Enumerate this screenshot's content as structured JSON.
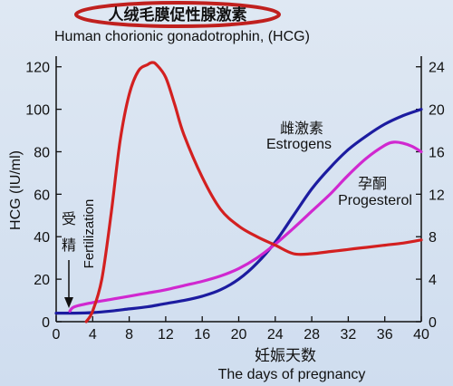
{
  "chart_data": {
    "type": "line",
    "title_cn": "人绒毛膜促性腺激素",
    "title_en": "Human chorionic gonadotrophin, (HCG)",
    "ylabel": "HCG (IU/ml)",
    "xlabel_cn": "妊娠天数",
    "xlabel_en": "The days of pregnancy",
    "x_ticks": [
      0,
      4,
      8,
      12,
      16,
      20,
      24,
      28,
      32,
      36,
      40
    ],
    "x_tick_labels": [
      "0",
      "4",
      "8",
      "12",
      "16",
      "20",
      "24",
      "28",
      "32",
      "36",
      "40"
    ],
    "y_left_ticks": [
      0,
      20,
      40,
      60,
      80,
      100,
      120
    ],
    "y_left_tick_labels": [
      "0",
      "20",
      "40",
      "60",
      "80",
      "100",
      "120"
    ],
    "y_right_ticks": [
      0,
      4,
      8,
      12,
      16,
      20,
      24
    ],
    "y_right_tick_labels": [
      "0",
      "4",
      "8",
      "12",
      "16",
      "20",
      "24"
    ],
    "xlim": [
      0,
      40
    ],
    "ylim_left": [
      0,
      125
    ],
    "ylim_right": [
      0,
      25
    ],
    "fertilization_label_cn": [
      "受",
      "精"
    ],
    "fertilization_label_en": "Fertilization",
    "series": [
      {
        "name": "HCG",
        "color": "#d32020",
        "axis": "left",
        "x": [
          3.3,
          4,
          5,
          6,
          7,
          8,
          9,
          10,
          10.5,
          11,
          12,
          13,
          14,
          16,
          18,
          20,
          22,
          24,
          26,
          28,
          30,
          32,
          34,
          36,
          38,
          40
        ],
        "y": [
          0,
          5,
          20,
          50,
          85,
          107,
          118,
          121,
          122,
          121,
          115,
          102,
          88,
          68,
          53,
          45,
          40,
          36,
          32,
          32,
          33,
          34,
          35,
          36,
          37,
          38.5
        ]
      },
      {
        "name": "雌激素 Estrogens",
        "label_cn": "雌激素",
        "label_en": "Estrogens",
        "color": "#1c1ca0",
        "axis": "right",
        "x": [
          0,
          2,
          4,
          6,
          8,
          10,
          12,
          14,
          16,
          18,
          20,
          22,
          24,
          26,
          28,
          30,
          32,
          34,
          36,
          38,
          40
        ],
        "y": [
          0.8,
          0.8,
          0.85,
          1.0,
          1.2,
          1.4,
          1.7,
          2.0,
          2.4,
          3.0,
          4.0,
          5.5,
          7.5,
          10.0,
          12.5,
          14.5,
          16.2,
          17.5,
          18.6,
          19.4,
          20.0
        ]
      },
      {
        "name": "孕酮 Progesterol",
        "label_cn": "孕酮",
        "label_en": "Progesterol",
        "color": "#d028d0",
        "axis": "right",
        "x": [
          1.5,
          2,
          4,
          6,
          8,
          10,
          12,
          14,
          16,
          18,
          20,
          22,
          24,
          26,
          28,
          30,
          32,
          34,
          36,
          37,
          38,
          39,
          40
        ],
        "y": [
          1.0,
          1.4,
          1.8,
          2.1,
          2.4,
          2.7,
          3.0,
          3.4,
          3.8,
          4.3,
          5.0,
          6.0,
          7.3,
          8.8,
          10.4,
          12.0,
          13.8,
          15.4,
          16.6,
          16.9,
          16.8,
          16.5,
          16.0
        ]
      }
    ],
    "grid": false,
    "legend": "inline labels"
  }
}
